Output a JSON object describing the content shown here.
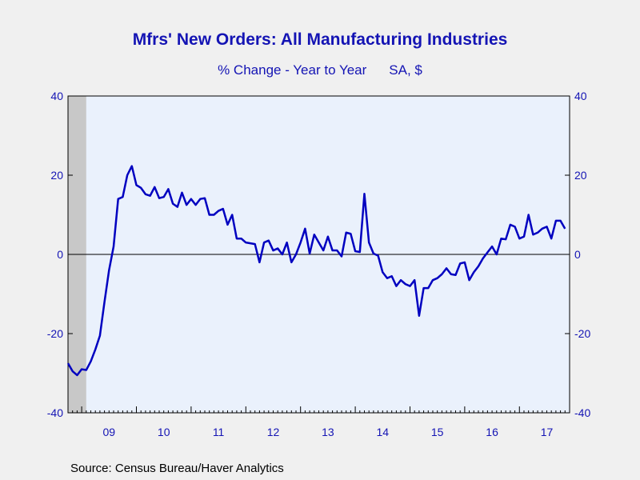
{
  "chart_data": {
    "type": "line",
    "title": "Mfrs' New Orders: All Manufacturing Industries",
    "subtitle": "% Change - Year to Year",
    "units": "SA, $",
    "source": "Source:  Census Bureau/Haver Analytics",
    "ylim": [
      -40,
      40
    ],
    "y_ticks": [
      -40,
      -20,
      0,
      20,
      40
    ],
    "y_tick_labels_left": [
      "-40",
      "-20",
      "0",
      "20",
      "40"
    ],
    "y_tick_labels_right": [
      "-40",
      "-20",
      "0",
      "20",
      "40"
    ],
    "x_range": [
      2008.75,
      2017.917
    ],
    "x_tick_labels": [
      "09",
      "10",
      "11",
      "12",
      "13",
      "14",
      "15",
      "16",
      "17"
    ],
    "recession_shading": {
      "start": 2008.75,
      "end": 2009.083
    },
    "zero_line": true,
    "legend": "none",
    "colors": {
      "line": "#0000c0",
      "recession": "#c8c8c8",
      "plot_bg": "#eaf1fc",
      "text": "#1414b4"
    },
    "series": [
      {
        "x_start": 2008.75,
        "x_step_months": 1,
        "values": [
          -27.5,
          -29.5,
          -30.5,
          -29,
          -29.2,
          -27,
          -24,
          -20.5,
          -12,
          -4,
          2,
          14,
          14.5,
          20,
          22.3,
          17.5,
          16.8,
          15.2,
          14.8,
          17,
          14.2,
          14.5,
          16.5,
          12.8,
          12,
          15.6,
          12.5,
          14,
          12.5,
          14,
          14.2,
          10,
          10,
          11,
          11.5,
          7.5,
          10,
          4,
          4,
          3,
          2.8,
          2.6,
          -2,
          3,
          3.5,
          1,
          1.5,
          0,
          3,
          -2,
          0,
          3,
          6.5,
          0.2,
          5,
          3,
          1,
          4.5,
          1,
          1,
          -0.5,
          5.5,
          5.2,
          0.8,
          0.6,
          15.3,
          3,
          0.2,
          -0.3,
          -4.5,
          -6,
          -5.5,
          -8,
          -6.5,
          -7.5,
          -8,
          -6.5,
          -15.5,
          -8.5,
          -8.5,
          -6.5,
          -6,
          -5,
          -3.5,
          -5,
          -5.2,
          -2.3,
          -2,
          -6.5,
          -4.5,
          -3,
          -1,
          0.5,
          2,
          0,
          4,
          3.8,
          7.5,
          7,
          4,
          4.5,
          10,
          5,
          5.5,
          6.5,
          7,
          4,
          8.5,
          8.5,
          6.5
        ]
      }
    ]
  }
}
